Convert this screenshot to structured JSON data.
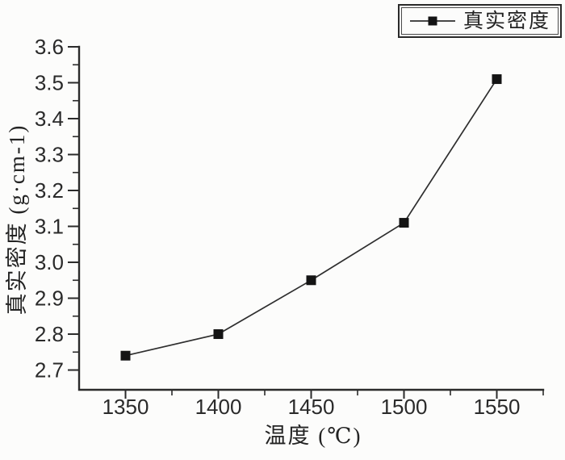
{
  "chart_data": {
    "type": "line",
    "title": "",
    "xlabel": "温度 (℃)",
    "ylabel": "真实密度 (g·cm-1)",
    "legend_label": "真实密度",
    "legend_position": "top-right",
    "grid": false,
    "series": [
      {
        "name": "真实密度",
        "marker": "filled-square",
        "x": [
          1350,
          1400,
          1450,
          1500,
          1550
        ],
        "y": [
          2.74,
          2.8,
          2.95,
          3.11,
          3.51
        ]
      }
    ],
    "xlim": [
      1325,
      1575
    ],
    "ylim": [
      2.645,
      3.6
    ],
    "x_ticks_major": [
      1350,
      1400,
      1450,
      1500,
      1550
    ],
    "x_ticks_minor": [
      1375,
      1425,
      1475,
      1525,
      1575
    ],
    "y_ticks_major": [
      2.7,
      2.8,
      2.9,
      3.0,
      3.1,
      3.2,
      3.3,
      3.4,
      3.5,
      3.6
    ],
    "y_ticks_minor": [
      2.75,
      2.85,
      2.95,
      3.05,
      3.15,
      3.25,
      3.35,
      3.45,
      3.55
    ],
    "x_tick_label_format": "integer",
    "y_tick_label_format": "one-decimal"
  },
  "colors": {
    "axis": "#2b2b2b",
    "line": "#2e2e2e",
    "marker": "#141414",
    "text": "#242424",
    "background": "#fcfcfb"
  }
}
